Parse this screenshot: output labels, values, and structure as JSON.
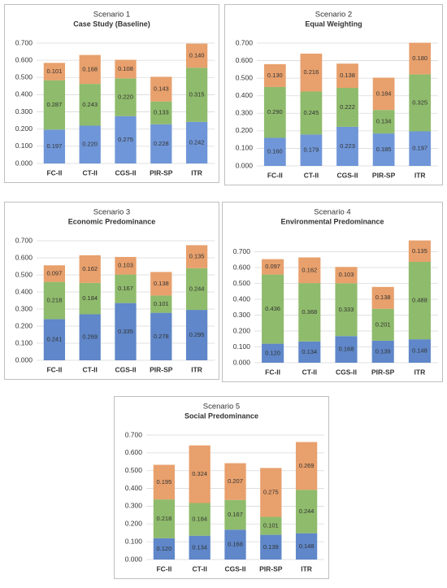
{
  "chart_data": [
    {
      "type": "bar",
      "stacked": true,
      "title": "Scenario 1",
      "subtitle": "Case Study (Baseline)",
      "grid": true,
      "categories": [
        "FC-II",
        "CT-II",
        "CGS-II",
        "PIR-SP",
        "ITR"
      ],
      "ylim": [
        0,
        0.7
      ],
      "yticks": [
        {
          "value": 0,
          "label": "0.000"
        },
        {
          "value": 0.1,
          "label": "0.100"
        },
        {
          "value": 0.2,
          "label": "0.200"
        },
        {
          "value": 0.3,
          "label": "0.300"
        },
        {
          "value": 0.4,
          "label": "0.400"
        },
        {
          "value": 0.5,
          "label": "0.500"
        },
        {
          "value": 0.6,
          "label": "0.600"
        },
        {
          "value": 0.7,
          "label": "0.700"
        }
      ],
      "series": [
        {
          "color": "#6f96d8",
          "values": [
            0.197,
            0.22,
            0.275,
            0.228,
            0.242
          ],
          "value_labels": [
            "0.197",
            "0.220",
            "0.275",
            "0.228",
            "0.242"
          ]
        },
        {
          "color": "#8fbb6c",
          "values": [
            0.287,
            0.243,
            0.22,
            0.133,
            0.315
          ],
          "value_labels": [
            "0.287",
            "0.243",
            "0.220",
            "0.133",
            "0.315"
          ]
        },
        {
          "color": "#e8a06c",
          "values": [
            0.101,
            0.168,
            0.108,
            0.143,
            0.14
          ],
          "value_labels": [
            "0.101",
            "0.168",
            "0.108",
            "0.143",
            "0.140"
          ]
        }
      ]
    },
    {
      "type": "bar",
      "stacked": true,
      "title": "Scenario 2",
      "subtitle": "Equal Weighting",
      "grid": true,
      "categories": [
        "FC-II",
        "CT-II",
        "CGS-II",
        "PIR-SP",
        "ITR"
      ],
      "ylim": [
        0,
        0.7
      ],
      "yticks": [
        {
          "value": 0,
          "label": "0.000"
        },
        {
          "value": 0.1,
          "label": "0.100"
        },
        {
          "value": 0.2,
          "label": "0.200"
        },
        {
          "value": 0.3,
          "label": "0.300"
        },
        {
          "value": 0.4,
          "label": "0.400"
        },
        {
          "value": 0.5,
          "label": "0.500"
        },
        {
          "value": 0.6,
          "label": "0.600"
        },
        {
          "value": 0.7,
          "label": "0.700"
        }
      ],
      "series": [
        {
          "color": "#6f96d8",
          "values": [
            0.16,
            0.179,
            0.223,
            0.185,
            0.197
          ],
          "value_labels": [
            "0.160",
            "0.179",
            "0.223",
            "0.185",
            "0.197"
          ]
        },
        {
          "color": "#8fbb6c",
          "values": [
            0.29,
            0.245,
            0.222,
            0.134,
            0.325
          ],
          "value_labels": [
            "0.290",
            "0.245",
            "0.222",
            "0.134",
            "0.325"
          ]
        },
        {
          "color": "#e8a06c",
          "values": [
            0.13,
            0.216,
            0.138,
            0.184,
            0.18
          ],
          "value_labels": [
            "0.130",
            "0.216",
            "0.138",
            "0.184",
            "0.180"
          ]
        }
      ]
    },
    {
      "type": "bar",
      "stacked": true,
      "title": "Scenario 3",
      "subtitle": "Economic Predominance",
      "grid": true,
      "categories": [
        "FC-II",
        "CT-II",
        "CGS-II",
        "PIR-SP",
        "ITR"
      ],
      "ylim": [
        0,
        0.7
      ],
      "yticks": [
        {
          "value": 0,
          "label": "0.000"
        },
        {
          "value": 0.1,
          "label": "0.100"
        },
        {
          "value": 0.2,
          "label": "0.200"
        },
        {
          "value": 0.3,
          "label": "0.300"
        },
        {
          "value": 0.4,
          "label": "0.400"
        },
        {
          "value": 0.5,
          "label": "0.500"
        },
        {
          "value": 0.6,
          "label": "0.600"
        },
        {
          "value": 0.7,
          "label": "0.700"
        }
      ],
      "series": [
        {
          "color": "#5f87c9",
          "values": [
            0.241,
            0.269,
            0.335,
            0.278,
            0.295
          ],
          "value_labels": [
            "0.241",
            "0.269",
            "0.335",
            "0.278",
            "0.295"
          ]
        },
        {
          "color": "#8fbb6c",
          "values": [
            0.218,
            0.184,
            0.167,
            0.101,
            0.244
          ],
          "value_labels": [
            "0.218",
            "0.184",
            "0.167",
            "0.101",
            "0.244"
          ]
        },
        {
          "color": "#e8a06c",
          "values": [
            0.097,
            0.162,
            0.103,
            0.138,
            0.135
          ],
          "value_labels": [
            "0.097",
            "0.162",
            "0.103",
            "0.138",
            "0.135"
          ]
        }
      ]
    },
    {
      "type": "bar",
      "stacked": true,
      "title": "Scenario 4",
      "subtitle": "Environmental Predominance",
      "grid": true,
      "categories": [
        "FC-II",
        "CT-II",
        "CGS-II",
        "PIR-SP",
        "ITR"
      ],
      "ylim": [
        0,
        0.8
      ],
      "yticks": [
        {
          "value": 0,
          "label": "0.000"
        },
        {
          "value": 0.1,
          "label": "0.100"
        },
        {
          "value": 0.2,
          "label": "0.200"
        },
        {
          "value": 0.3,
          "label": "0.300"
        },
        {
          "value": 0.4,
          "label": "0.400"
        },
        {
          "value": 0.5,
          "label": "0.500"
        },
        {
          "value": 0.6,
          "label": "0.600"
        },
        {
          "value": 0.7,
          "label": "0.700"
        }
      ],
      "series": [
        {
          "color": "#5f87c9",
          "values": [
            0.12,
            0.134,
            0.168,
            0.139,
            0.148
          ],
          "value_labels": [
            "0.120",
            "0.134",
            "0.168",
            "0.139",
            "0.148"
          ]
        },
        {
          "color": "#8fbb6c",
          "values": [
            0.436,
            0.368,
            0.333,
            0.201,
            0.488
          ],
          "value_labels": [
            "0.436",
            "0.368",
            "0.333",
            "0.201",
            "0.488"
          ]
        },
        {
          "color": "#e8a06c",
          "values": [
            0.097,
            0.162,
            0.103,
            0.138,
            0.135
          ],
          "value_labels": [
            "0.097",
            "0.162",
            "0.103",
            "0.138",
            "0.135"
          ]
        }
      ]
    },
    {
      "type": "bar",
      "stacked": true,
      "title": "Scenario 5",
      "subtitle": "Social Predominance",
      "grid": true,
      "categories": [
        "FC-II",
        "CT-II",
        "CGS-II",
        "PIR-SP",
        "ITR"
      ],
      "ylim": [
        0,
        0.7
      ],
      "yticks": [
        {
          "value": 0,
          "label": "0.000"
        },
        {
          "value": 0.1,
          "label": "0.100"
        },
        {
          "value": 0.2,
          "label": "0.200"
        },
        {
          "value": 0.3,
          "label": "0.300"
        },
        {
          "value": 0.4,
          "label": "0.400"
        },
        {
          "value": 0.5,
          "label": "0.500"
        },
        {
          "value": 0.6,
          "label": "0.600"
        },
        {
          "value": 0.7,
          "label": "0.700"
        }
      ],
      "series": [
        {
          "color": "#5f87c9",
          "values": [
            0.12,
            0.134,
            0.168,
            0.139,
            0.148
          ],
          "value_labels": [
            "0.120",
            "0.134",
            "0.168",
            "0.139",
            "0.148"
          ]
        },
        {
          "color": "#8fbb6c",
          "values": [
            0.218,
            0.184,
            0.167,
            0.101,
            0.244
          ],
          "value_labels": [
            "0.218",
            "0.184",
            "0.167",
            "0.101",
            "0.244"
          ]
        },
        {
          "color": "#e8a06c",
          "values": [
            0.195,
            0.324,
            0.207,
            0.275,
            0.269
          ],
          "value_labels": [
            "0.195",
            "0.324",
            "0.207",
            "0.275",
            "0.269"
          ]
        }
      ]
    }
  ]
}
